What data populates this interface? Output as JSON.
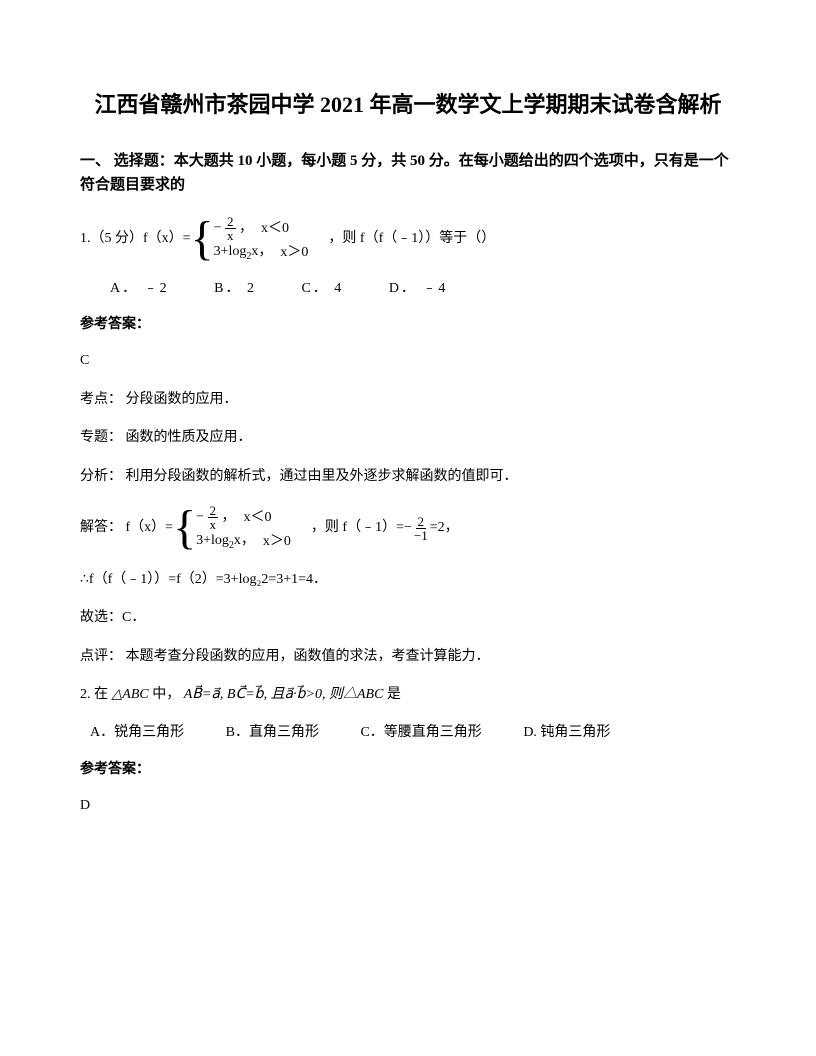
{
  "title": "江西省赣州市茶园中学 2021 年高一数学文上学期期末试卷含解析",
  "section1": "一、 选择题：本大题共 10 小题，每小题 5 分，共 50 分。在每小题给出的四个选项中，只有是一个符合题目要求的",
  "q1": {
    "prefix": "1.（5 分）f（x）=",
    "piecewise_row1_expr": "−",
    "piecewise_row1_frac_num": "2",
    "piecewise_row1_frac_den": "x",
    "piecewise_row1_comma": "，",
    "piecewise_row1_cond": "x＜0",
    "piecewise_row2_expr": "3+log",
    "piecewise_row2_sub": "2",
    "piecewise_row2_x": "x，",
    "piecewise_row2_cond": "x＞0",
    "suffix": "，则 f（f（﹣1））等于（）",
    "options": {
      "a": "A．  ﹣2",
      "b": "B．   2",
      "c": "C．   4",
      "d": "D．  ﹣4"
    },
    "answer_header": "参考答案：",
    "answer": "C",
    "kaodian": "考点： 分段函数的应用．",
    "zhuanti": "专题： 函数的性质及应用．",
    "fenxi": "分析： 利用分段函数的解析式，通过由里及外逐步求解函数的值即可．",
    "jieda_prefix": "解答： f（x）=",
    "jieda_mid": "，则 f（﹣1）=",
    "jieda_frac_num": "2",
    "jieda_frac_den": "−1",
    "jieda_suffix": "=2，",
    "jieda_line2": "∴f（f（﹣1））=f（2）=3+log₂2=3+1=4．",
    "guxuan": "故选：C．",
    "dianping": "点评： 本题考查分段函数的应用，函数值的求法，考查计算能力．"
  },
  "q2": {
    "prefix": "2. 在",
    "triangle1": "△ABC",
    "mid": " 中，",
    "formula": "AB⃗=a⃗, BC⃗=b⃗, 且a⃗·b⃗>0, 则△ABC",
    "suffix": " 是",
    "options": {
      "a": "A．锐角三角形",
      "b": "B．直角三角形",
      "c": "C．等腰直角三角形",
      "d": "D. 钝角三角形"
    },
    "answer_header": "参考答案：",
    "answer": "D"
  }
}
